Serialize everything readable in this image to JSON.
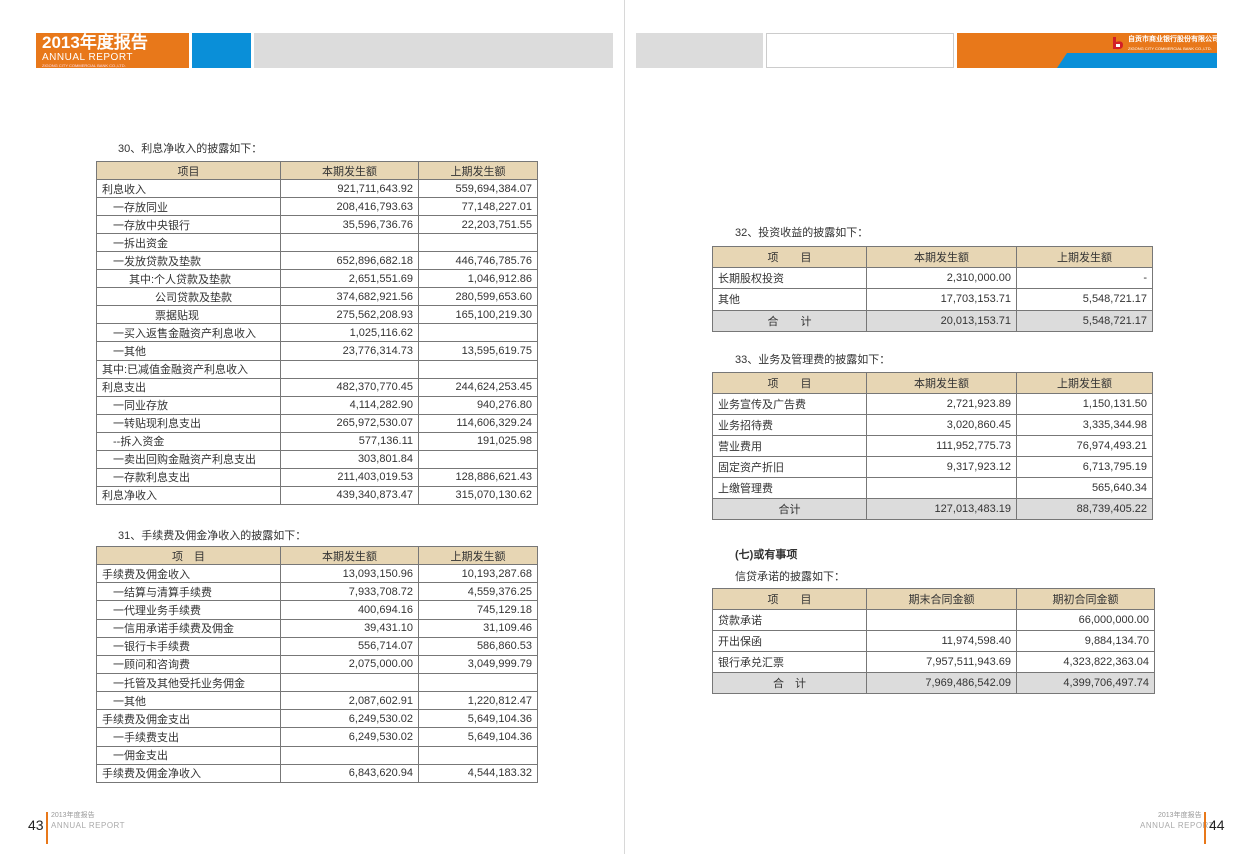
{
  "header_left": {
    "title": "2013年度报告",
    "subtitle": "ANNUAL REPORT",
    "tiny": "ZIGONG CITY COMMERCIAL BANK CO.,LTD.",
    "colors": {
      "orange": "#e8781a",
      "blue": "#0a8fd8",
      "gray": "#dcdcdc"
    }
  },
  "header_right": {
    "bank_name": "自贡市商业银行股份有限公司",
    "bank_en": "ZIGONG CITY COMMERCIAL BANK CO.,LTD.",
    "logo": "bank-logo-icon"
  },
  "sections": {
    "s30": {
      "title": "30、利息净收入的披露如下：",
      "headers": [
        "项目",
        "本期发生额",
        "上期发生额"
      ],
      "rows": [
        {
          "label": "利息收入",
          "level": 0,
          "cur": "921,711,643.92",
          "prev": "559,694,384.07"
        },
        {
          "label": "一存放同业",
          "level": 1,
          "cur": "208,416,793.63",
          "prev": "77,148,227.01"
        },
        {
          "label": "一存放中央银行",
          "level": 1,
          "cur": "35,596,736.76",
          "prev": "22,203,751.55"
        },
        {
          "label": "一拆出资金",
          "level": 1,
          "cur": "",
          "prev": ""
        },
        {
          "label": "一发放贷款及垫款",
          "level": 1,
          "cur": "652,896,682.18",
          "prev": "446,746,785.76"
        },
        {
          "label": "其中:个人贷款及垫款",
          "level": 2,
          "cur": "2,651,551.69",
          "prev": "1,046,912.86"
        },
        {
          "label": "公司贷款及垫款",
          "level": 3,
          "cur": "374,682,921.56",
          "prev": "280,599,653.60"
        },
        {
          "label": "票据贴现",
          "level": 3,
          "cur": "275,562,208.93",
          "prev": "165,100,219.30"
        },
        {
          "label": "一买入返售金融资产利息收入",
          "level": 1,
          "cur": "1,025,116.62",
          "prev": ""
        },
        {
          "label": "一其他",
          "level": 1,
          "cur": "23,776,314.73",
          "prev": "13,595,619.75"
        },
        {
          "label": "其中:已减值金融资产利息收入",
          "level": 0,
          "cur": "",
          "prev": ""
        },
        {
          "label": "利息支出",
          "level": 0,
          "cur": "482,370,770.45",
          "prev": "244,624,253.45"
        },
        {
          "label": "一同业存放",
          "level": 1,
          "cur": "4,114,282.90",
          "prev": "940,276.80"
        },
        {
          "label": "一转贴现利息支出",
          "level": 1,
          "cur": "265,972,530.07",
          "prev": "114,606,329.24"
        },
        {
          "label": "--拆入资金",
          "level": 1,
          "cur": "577,136.11",
          "prev": "191,025.98"
        },
        {
          "label": "一卖出回购金融资产利息支出",
          "level": 1,
          "cur": "303,801.84",
          "prev": ""
        },
        {
          "label": "一存款利息支出",
          "level": 1,
          "cur": "211,403,019.53",
          "prev": "128,886,621.43"
        },
        {
          "label": "利息净收入",
          "level": 0,
          "cur": "439,340,873.47",
          "prev": "315,070,130.62"
        }
      ]
    },
    "s31": {
      "title": "31、手续费及佣金净收入的披露如下：",
      "headers": [
        "项　目",
        "本期发生额",
        "上期发生额"
      ],
      "rows": [
        {
          "label": "手续费及佣金收入",
          "level": 0,
          "cur": "13,093,150.96",
          "prev": "10,193,287.68"
        },
        {
          "label": "一结算与清算手续费",
          "level": 1,
          "cur": "7,933,708.72",
          "prev": "4,559,376.25"
        },
        {
          "label": "一代理业务手续费",
          "level": 1,
          "cur": "400,694.16",
          "prev": "745,129.18"
        },
        {
          "label": "一信用承诺手续费及佣金",
          "level": 1,
          "cur": "39,431.10",
          "prev": "31,109.46"
        },
        {
          "label": "一银行卡手续费",
          "level": 1,
          "cur": "556,714.07",
          "prev": "586,860.53"
        },
        {
          "label": "一顾问和咨询费",
          "level": 1,
          "cur": "2,075,000.00",
          "prev": "3,049,999.79"
        },
        {
          "label": "一托管及其他受托业务佣金",
          "level": 1,
          "cur": "",
          "prev": ""
        },
        {
          "label": "一其他",
          "level": 1,
          "cur": "2,087,602.91",
          "prev": "1,220,812.47"
        },
        {
          "label": "手续费及佣金支出",
          "level": 0,
          "cur": "6,249,530.02",
          "prev": "5,649,104.36"
        },
        {
          "label": "一手续费支出",
          "level": 1,
          "cur": "6,249,530.02",
          "prev": "5,649,104.36"
        },
        {
          "label": "一佣金支出",
          "level": 1,
          "cur": "",
          "prev": ""
        },
        {
          "label": "手续费及佣金净收入",
          "level": 0,
          "cur": "6,843,620.94",
          "prev": "4,544,183.32"
        }
      ]
    },
    "s32": {
      "title": "32、投资收益的披露如下：",
      "headers": [
        "项　　目",
        "本期发生额",
        "上期发生额"
      ],
      "rows": [
        {
          "label": "长期股权投资",
          "level": 0,
          "cur": "2,310,000.00",
          "prev": "-"
        },
        {
          "label": "其他",
          "level": 0,
          "cur": "17,703,153.71",
          "prev": "5,548,721.17"
        },
        {
          "label": "合　　计",
          "total": true,
          "cur": "20,013,153.71",
          "prev": "5,548,721.17"
        }
      ]
    },
    "s33": {
      "title": "33、业务及管理费的披露如下：",
      "headers": [
        "项　　目",
        "本期发生额",
        "上期发生额"
      ],
      "rows": [
        {
          "label": "业务宣传及广告费",
          "level": 0,
          "cur": "2,721,923.89",
          "prev": "1,150,131.50"
        },
        {
          "label": "业务招待费",
          "level": 0,
          "cur": "3,020,860.45",
          "prev": "3,335,344.98"
        },
        {
          "label": "营业费用",
          "level": 0,
          "cur": "111,952,775.73",
          "prev": "76,974,493.21"
        },
        {
          "label": "固定资产折旧",
          "level": 0,
          "cur": "9,317,923.12",
          "prev": "6,713,795.19"
        },
        {
          "label": "上缴管理费",
          "level": 0,
          "cur": "",
          "prev": "565,640.34"
        },
        {
          "label": "合计",
          "total": true,
          "cur": "127,013,483.19",
          "prev": "88,739,405.22"
        }
      ]
    },
    "s7": {
      "heading": "(七)或有事项",
      "title": "信贷承诺的披露如下：",
      "headers": [
        "项　　目",
        "期末合同金额",
        "期初合同金额"
      ],
      "rows": [
        {
          "label": "贷款承诺",
          "level": 0,
          "cur": "",
          "prev": "66,000,000.00"
        },
        {
          "label": "开出保函",
          "level": 0,
          "cur": "11,974,598.40",
          "prev": "9,884,134.70"
        },
        {
          "label": "银行承兑汇票",
          "level": 0,
          "cur": "7,957,511,943.69",
          "prev": "4,323,822,363.04"
        },
        {
          "label": "合　计",
          "total": true,
          "cur": "7,969,486,542.09",
          "prev": "4,399,706,497.74"
        }
      ]
    }
  },
  "footer_left": {
    "page": "43",
    "small": "2013年度报告",
    "report": "ANNUAL REPORT"
  },
  "footer_right": {
    "page": "44",
    "small": "2013年度报告",
    "report": "ANNUAL REPORT"
  }
}
